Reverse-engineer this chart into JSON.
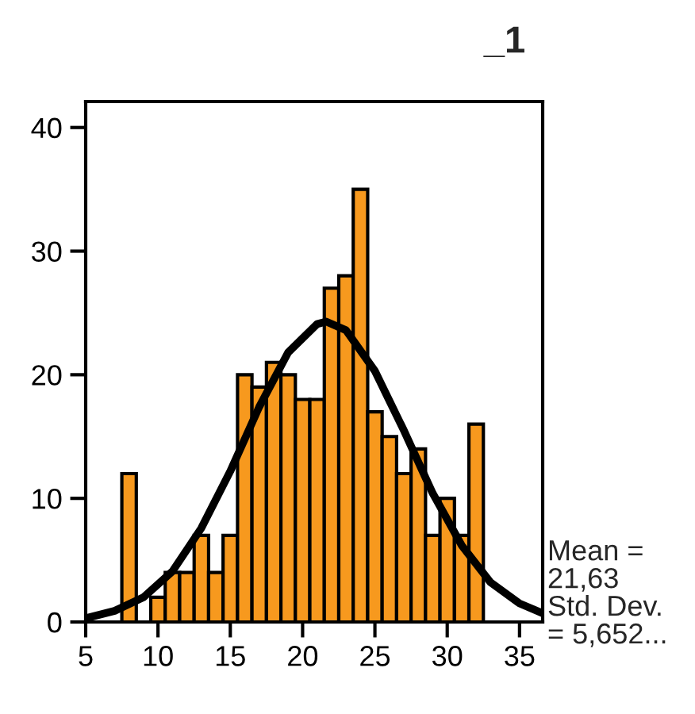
{
  "chart_data": {
    "type": "histogram",
    "title": "_1",
    "bins": [
      7.5,
      8.5,
      9.5,
      10.5,
      11.5,
      12.5,
      13.5,
      14.5,
      15.5,
      16.5,
      17.5,
      18.5,
      19.5,
      20.5,
      21.5,
      22.5,
      23.5,
      24.5,
      25.5,
      26.5,
      27.5,
      28.5,
      29.5,
      30.5,
      31.5,
      32.5
    ],
    "values": [
      12,
      0,
      2,
      4,
      4,
      7,
      4,
      7,
      20,
      19,
      21,
      20,
      18,
      18,
      27,
      28,
      35,
      17,
      15,
      12,
      14,
      7,
      10,
      7,
      16
    ],
    "color": "#f7991e",
    "series": [
      {
        "type": "line",
        "color": "#000000",
        "x": [
          5,
          7,
          9,
          11,
          13,
          15,
          17,
          19,
          21,
          21.63,
          23,
          25,
          27,
          29,
          31,
          33,
          35,
          36.6
        ],
        "values": [
          0.3,
          0.9,
          2,
          4.1,
          7.6,
          12.2,
          17.4,
          21.8,
          24.1,
          24.3,
          23.6,
          20.3,
          15.5,
          10.4,
          6.2,
          3.2,
          1.5,
          0.7
        ]
      }
    ],
    "xlim": [
      5,
      36.6
    ],
    "xticks": [
      5,
      10,
      15,
      20,
      25,
      30,
      35
    ],
    "ylim": [
      0,
      42.1
    ],
    "yticks": [
      0,
      10,
      20,
      30,
      40
    ],
    "grid": false,
    "annotations": [
      "Mean =\n21,63\nStd. Dev.\n= 5,652..."
    ]
  }
}
